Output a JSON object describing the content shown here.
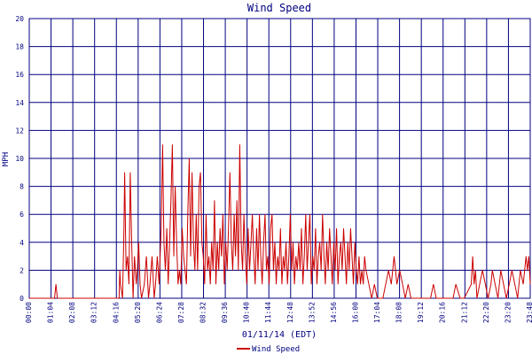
{
  "chart_data": {
    "type": "line",
    "title": "Wind Speed",
    "xlabel": "01/11/14 (EDT)",
    "ylabel": "MPH",
    "ylim": [
      0,
      20
    ],
    "xlim": [
      "00:00",
      "23:48"
    ],
    "y_ticks": [
      "0",
      "2",
      "4",
      "6",
      "8",
      "10",
      "12",
      "14",
      "16",
      "18",
      "20"
    ],
    "x_ticks": [
      "00:00",
      "01:04",
      "02:08",
      "03:12",
      "04:16",
      "05:20",
      "06:24",
      "07:28",
      "08:32",
      "09:36",
      "10:40",
      "11:44",
      "12:48",
      "13:52",
      "14:56",
      "16:00",
      "17:04",
      "18:08",
      "19:12",
      "20:16",
      "21:12",
      "22:20",
      "23:20",
      "23:48"
    ],
    "grid": true,
    "legend": "bottom-center",
    "colors": {
      "series": "#cc0000",
      "grid": "#000080",
      "text": "#000080",
      "background": "#ffffff"
    },
    "series": [
      {
        "name": "Wind Speed",
        "points": [
          [
            "00:00",
            0
          ],
          [
            "01:04",
            0
          ],
          [
            "01:12",
            0
          ],
          [
            "01:16",
            1
          ],
          [
            "01:20",
            0
          ],
          [
            "02:08",
            0
          ],
          [
            "03:12",
            0
          ],
          [
            "04:00",
            0
          ],
          [
            "04:16",
            0
          ],
          [
            "04:18",
            2
          ],
          [
            "04:20",
            1
          ],
          [
            "04:26",
            0
          ],
          [
            "04:30",
            5
          ],
          [
            "04:32",
            9
          ],
          [
            "04:36",
            2
          ],
          [
            "04:40",
            3
          ],
          [
            "04:44",
            1
          ],
          [
            "04:48",
            9
          ],
          [
            "04:52",
            4
          ],
          [
            "04:56",
            0
          ],
          [
            "05:00",
            3
          ],
          [
            "05:05",
            1
          ],
          [
            "05:08",
            2
          ],
          [
            "05:12",
            4
          ],
          [
            "05:16",
            1
          ],
          [
            "05:20",
            0
          ],
          [
            "05:28",
            1
          ],
          [
            "05:34",
            3
          ],
          [
            "05:40",
            0
          ],
          [
            "05:44",
            1
          ],
          [
            "05:50",
            3
          ],
          [
            "05:56",
            0
          ],
          [
            "06:00",
            1
          ],
          [
            "06:05",
            3
          ],
          [
            "06:10",
            1
          ],
          [
            "06:16",
            5
          ],
          [
            "06:20",
            11
          ],
          [
            "06:24",
            4
          ],
          [
            "06:28",
            2
          ],
          [
            "06:32",
            5
          ],
          [
            "06:36",
            1
          ],
          [
            "06:40",
            4
          ],
          [
            "06:44",
            7
          ],
          [
            "06:48",
            11
          ],
          [
            "06:52",
            3
          ],
          [
            "06:56",
            8
          ],
          [
            "07:00",
            4
          ],
          [
            "07:04",
            1
          ],
          [
            "07:08",
            2
          ],
          [
            "07:12",
            1
          ],
          [
            "07:16",
            5
          ],
          [
            "07:20",
            3
          ],
          [
            "07:24",
            2
          ],
          [
            "07:28",
            1
          ],
          [
            "07:32",
            6
          ],
          [
            "07:36",
            10
          ],
          [
            "07:40",
            3
          ],
          [
            "07:44",
            9
          ],
          [
            "07:48",
            4
          ],
          [
            "07:52",
            2
          ],
          [
            "07:56",
            6
          ],
          [
            "08:00",
            2
          ],
          [
            "08:04",
            8
          ],
          [
            "08:08",
            9
          ],
          [
            "08:12",
            4
          ],
          [
            "08:16",
            3
          ],
          [
            "08:20",
            1
          ],
          [
            "08:24",
            6
          ],
          [
            "08:28",
            2
          ],
          [
            "08:32",
            3
          ],
          [
            "08:36",
            1
          ],
          [
            "08:40",
            4
          ],
          [
            "08:44",
            2
          ],
          [
            "08:48",
            7
          ],
          [
            "08:52",
            1
          ],
          [
            "08:56",
            4
          ],
          [
            "09:00",
            2
          ],
          [
            "09:04",
            5
          ],
          [
            "09:08",
            3
          ],
          [
            "09:12",
            6
          ],
          [
            "09:16",
            1
          ],
          [
            "09:20",
            4
          ],
          [
            "09:24",
            2
          ],
          [
            "09:28",
            5
          ],
          [
            "09:32",
            9
          ],
          [
            "09:36",
            4
          ],
          [
            "09:40",
            2
          ],
          [
            "09:44",
            6
          ],
          [
            "09:48",
            3
          ],
          [
            "09:52",
            7
          ],
          [
            "09:56",
            2
          ],
          [
            "10:00",
            11
          ],
          [
            "10:04",
            4
          ],
          [
            "10:08",
            2
          ],
          [
            "10:12",
            6
          ],
          [
            "10:16",
            3
          ],
          [
            "10:20",
            1
          ],
          [
            "10:24",
            5
          ],
          [
            "10:28",
            2
          ],
          [
            "10:32",
            4
          ],
          [
            "10:36",
            6
          ],
          [
            "10:40",
            3
          ],
          [
            "10:44",
            1
          ],
          [
            "10:48",
            5
          ],
          [
            "10:52",
            2
          ],
          [
            "10:56",
            6
          ],
          [
            "11:00",
            3
          ],
          [
            "11:04",
            1
          ],
          [
            "11:08",
            4
          ],
          [
            "11:12",
            6
          ],
          [
            "11:16",
            2
          ],
          [
            "11:20",
            3
          ],
          [
            "11:24",
            1
          ],
          [
            "11:28",
            5
          ],
          [
            "11:32",
            6
          ],
          [
            "11:36",
            2
          ],
          [
            "11:40",
            4
          ],
          [
            "11:44",
            1
          ],
          [
            "11:48",
            3
          ],
          [
            "11:52",
            2
          ],
          [
            "11:56",
            5
          ],
          [
            "12:00",
            1
          ],
          [
            "12:04",
            3
          ],
          [
            "12:08",
            2
          ],
          [
            "12:12",
            4
          ],
          [
            "12:16",
            1
          ],
          [
            "12:20",
            3
          ],
          [
            "12:24",
            6
          ],
          [
            "12:28",
            2
          ],
          [
            "12:32",
            4
          ],
          [
            "12:36",
            1
          ],
          [
            "12:40",
            3
          ],
          [
            "12:44",
            2
          ],
          [
            "12:48",
            4
          ],
          [
            "12:52",
            2
          ],
          [
            "12:56",
            5
          ],
          [
            "13:00",
            1
          ],
          [
            "13:04",
            3
          ],
          [
            "13:08",
            6
          ],
          [
            "13:12",
            2
          ],
          [
            "13:16",
            4
          ],
          [
            "13:20",
            6
          ],
          [
            "13:24",
            1
          ],
          [
            "13:28",
            3
          ],
          [
            "13:32",
            2
          ],
          [
            "13:36",
            5
          ],
          [
            "13:40",
            1
          ],
          [
            "13:44",
            3
          ],
          [
            "13:48",
            4
          ],
          [
            "13:52",
            2
          ],
          [
            "13:56",
            6
          ],
          [
            "14:00",
            3
          ],
          [
            "14:04",
            1
          ],
          [
            "14:08",
            4
          ],
          [
            "14:12",
            2
          ],
          [
            "14:16",
            5
          ],
          [
            "14:20",
            3
          ],
          [
            "14:24",
            1
          ],
          [
            "14:28",
            4
          ],
          [
            "14:32",
            2
          ],
          [
            "14:36",
            5
          ],
          [
            "14:40",
            1
          ],
          [
            "14:44",
            3
          ],
          [
            "14:48",
            4
          ],
          [
            "14:52",
            2
          ],
          [
            "14:56",
            5
          ],
          [
            "15:00",
            3
          ],
          [
            "15:04",
            1
          ],
          [
            "15:08",
            4
          ],
          [
            "15:12",
            2
          ],
          [
            "15:16",
            5
          ],
          [
            "15:20",
            3
          ],
          [
            "15:24",
            1
          ],
          [
            "15:28",
            4
          ],
          [
            "15:32",
            2
          ],
          [
            "15:36",
            1
          ],
          [
            "15:40",
            3
          ],
          [
            "15:44",
            1
          ],
          [
            "15:48",
            2
          ],
          [
            "15:52",
            1
          ],
          [
            "15:56",
            3
          ],
          [
            "16:00",
            2
          ],
          [
            "16:08",
            1
          ],
          [
            "16:16",
            0
          ],
          [
            "16:24",
            1
          ],
          [
            "16:32",
            0
          ],
          [
            "16:40",
            0
          ],
          [
            "16:48",
            0
          ],
          [
            "16:56",
            1
          ],
          [
            "17:04",
            2
          ],
          [
            "17:12",
            1
          ],
          [
            "17:20",
            3
          ],
          [
            "17:28",
            1
          ],
          [
            "17:36",
            2
          ],
          [
            "17:44",
            1
          ],
          [
            "17:52",
            0
          ],
          [
            "18:00",
            1
          ],
          [
            "18:08",
            0
          ],
          [
            "18:16",
            0
          ],
          [
            "18:32",
            0
          ],
          [
            "18:48",
            0
          ],
          [
            "19:04",
            0
          ],
          [
            "19:12",
            1
          ],
          [
            "19:20",
            0
          ],
          [
            "19:36",
            0
          ],
          [
            "19:52",
            0
          ],
          [
            "20:08",
            0
          ],
          [
            "20:16",
            1
          ],
          [
            "20:28",
            0
          ],
          [
            "20:40",
            0
          ],
          [
            "21:00",
            1
          ],
          [
            "21:04",
            3
          ],
          [
            "21:08",
            1
          ],
          [
            "21:12",
            2
          ],
          [
            "21:16",
            0
          ],
          [
            "21:24",
            1
          ],
          [
            "21:32",
            2
          ],
          [
            "21:40",
            1
          ],
          [
            "21:48",
            0
          ],
          [
            "21:56",
            1
          ],
          [
            "22:00",
            2
          ],
          [
            "22:08",
            1
          ],
          [
            "22:16",
            0
          ],
          [
            "22:24",
            2
          ],
          [
            "22:32",
            1
          ],
          [
            "22:40",
            0
          ],
          [
            "22:48",
            1
          ],
          [
            "22:56",
            2
          ],
          [
            "23:04",
            1
          ],
          [
            "23:12",
            0
          ],
          [
            "23:16",
            1
          ],
          [
            "23:20",
            2
          ],
          [
            "23:28",
            1
          ],
          [
            "23:36",
            3
          ],
          [
            "23:40",
            2
          ],
          [
            "23:44",
            3
          ],
          [
            "23:48",
            1
          ]
        ]
      }
    ]
  }
}
